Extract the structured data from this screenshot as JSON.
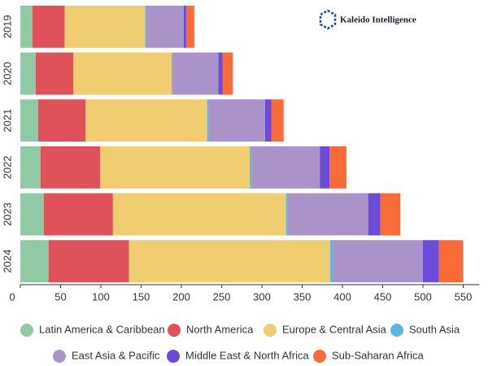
{
  "chart_data": {
    "type": "stacked_barh",
    "annotation": "Kaleido Intelligence",
    "categories": [
      "2019",
      "2020",
      "2021",
      "2022",
      "2023",
      "2024"
    ],
    "series": [
      {
        "name": "Latin America & Caribbean",
        "color": "#8fcaa5",
        "values": [
          15,
          19,
          22,
          25,
          29,
          35
        ]
      },
      {
        "name": "North America",
        "color": "#e0525a",
        "values": [
          40,
          47,
          59,
          74,
          86,
          100
        ]
      },
      {
        "name": "Europe & Central Asia",
        "color": "#f0cd70",
        "values": [
          100,
          122,
          151,
          186,
          215,
          250
        ]
      },
      {
        "name": "South Asia",
        "color": "#5bb5dd",
        "values": [
          1,
          1,
          2,
          2,
          2,
          3
        ]
      },
      {
        "name": "East Asia & Pacific",
        "color": "#aa93c9",
        "values": [
          47,
          57,
          70,
          85,
          100,
          112
        ]
      },
      {
        "name": "Middle East & North Africa",
        "color": "#6b4cd9",
        "values": [
          3,
          5,
          8,
          12,
          15,
          20
        ]
      },
      {
        "name": "Sub-Saharan Africa",
        "color": "#fa6b3a",
        "values": [
          10,
          13,
          15,
          21,
          25,
          30
        ]
      }
    ],
    "xlim": [
      0,
      560
    ],
    "xticks": [
      0,
      50,
      100,
      150,
      200,
      250,
      300,
      350,
      400,
      450,
      500,
      550
    ]
  }
}
